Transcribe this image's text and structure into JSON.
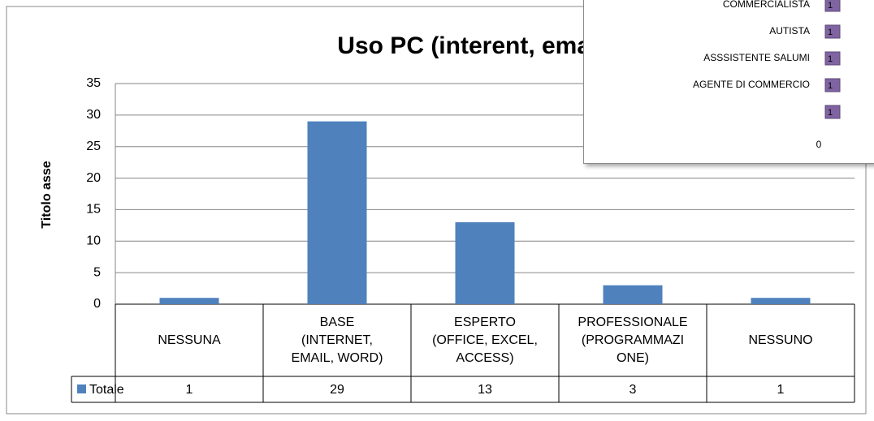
{
  "chart_data": [
    {
      "type": "bar",
      "title": "Uso PC (interent, email, o",
      "y_label": "Titolo asse",
      "categories": [
        "NESSUNA",
        "BASE\n(INTERNET,\nEMAIL, WORD)",
        "ESPERTO\n(OFFICE, EXCEL,\nACCESS)",
        "PROFESSIONALE\n(PROGRAMMAZI\nONE)",
        "NESSUNO"
      ],
      "series": [
        {
          "name": "Totale",
          "color": "#4f81bd",
          "values": [
            1,
            29,
            13,
            3,
            1
          ]
        }
      ],
      "ylim": [
        0,
        35
      ],
      "yticks": [
        0,
        5,
        10,
        15,
        20,
        25,
        30,
        35
      ],
      "grid": true,
      "data_table": true
    },
    {
      "type": "hbar",
      "categories": [
        "COMMERCIALISTA",
        "AUTISTA",
        "ASSSISTENTE SALUMI",
        "AGENTE DI COMMERCIO",
        null
      ],
      "values": [
        1,
        1,
        1,
        1,
        1
      ],
      "color": "#8064a2",
      "xlim": [
        0,
        10
      ],
      "xticks": [
        0
      ]
    }
  ]
}
